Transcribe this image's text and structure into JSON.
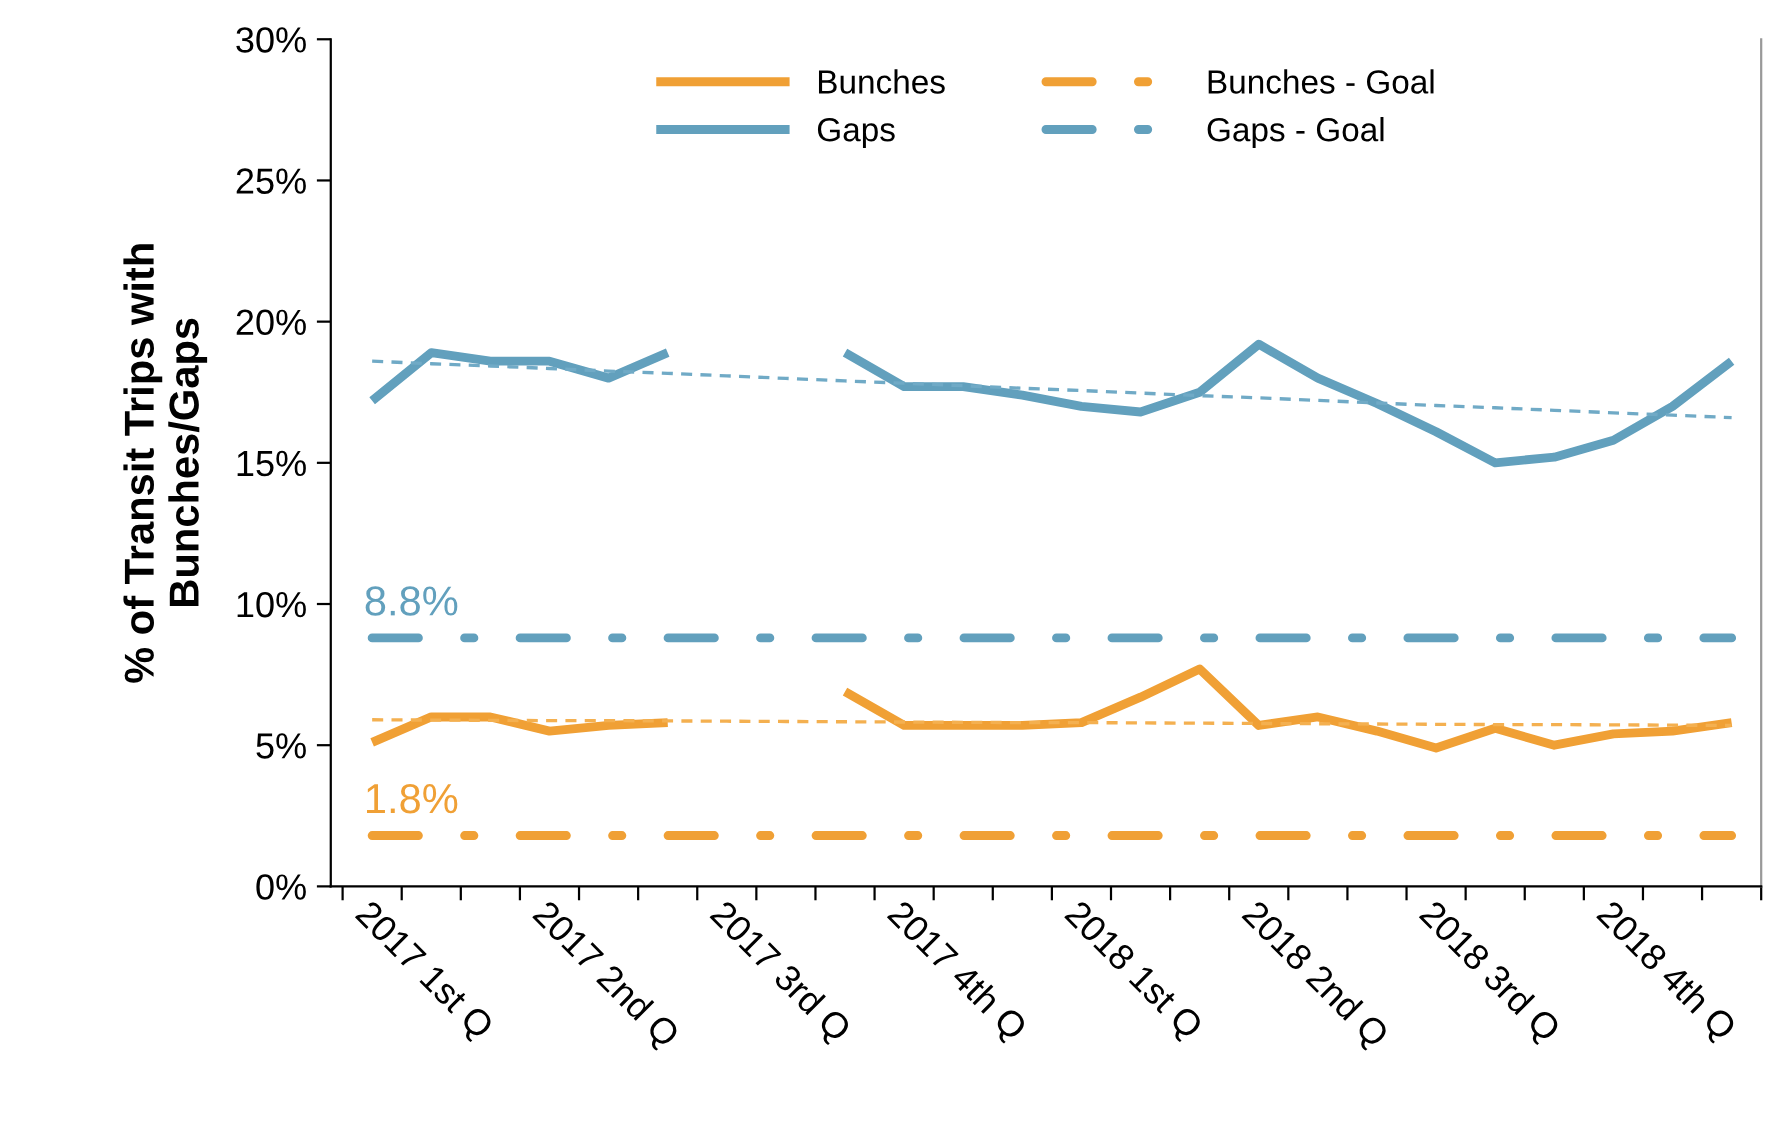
{
  "chart_data": {
    "type": "line",
    "ylabel": "% of Transit Trips with\nBunches/Gaps",
    "categories": [
      "2017 1st Q",
      null,
      null,
      "2017 2nd Q",
      null,
      null,
      "2017 3rd Q",
      null,
      null,
      "2017 4th Q",
      null,
      null,
      "2018 1st Q",
      null,
      null,
      "2018 2nd Q",
      null,
      null,
      "2018 3rd Q",
      null,
      null,
      "2018 4th Q",
      null,
      null
    ],
    "series": [
      {
        "name": "Bunches",
        "color": "#f0a035",
        "line_style": "solid",
        "values": [
          5.1,
          6.0,
          6.0,
          5.5,
          5.7,
          5.8,
          null,
          null,
          6.9,
          5.7,
          5.7,
          5.7,
          5.8,
          6.7,
          7.7,
          5.7,
          6.0,
          5.5,
          4.9,
          5.6,
          5.0,
          5.4,
          5.5,
          5.8
        ]
      },
      {
        "name": "Gaps",
        "color": "#62a0bd",
        "line_style": "solid",
        "values": [
          17.2,
          18.9,
          18.6,
          18.6,
          18.0,
          18.9,
          null,
          null,
          18.9,
          17.7,
          17.7,
          17.4,
          17.0,
          16.8,
          17.5,
          19.2,
          18.0,
          17.1,
          16.1,
          15.0,
          15.2,
          15.8,
          17.0,
          18.6
        ]
      },
      {
        "name": "Bunches - Goal",
        "color": "#f0a035",
        "line_style": "dashdot",
        "values": [
          1.8,
          1.8,
          1.8,
          1.8,
          1.8,
          1.8,
          1.8,
          1.8,
          1.8,
          1.8,
          1.8,
          1.8,
          1.8,
          1.8,
          1.8,
          1.8,
          1.8,
          1.8,
          1.8,
          1.8,
          1.8,
          1.8,
          1.8,
          1.8
        ],
        "value_labels": [
          "1.8%",
          null,
          null,
          null,
          null,
          null,
          null,
          null,
          null,
          null,
          null,
          null,
          null,
          null,
          null,
          null,
          null,
          null,
          null,
          null,
          null,
          null,
          null,
          null
        ]
      },
      {
        "name": "Gaps - Goal",
        "color": "#62a0bd",
        "line_style": "dashdot",
        "values": [
          8.8,
          8.8,
          8.8,
          8.8,
          8.8,
          8.8,
          8.8,
          8.8,
          8.8,
          8.8,
          8.8,
          8.8,
          8.8,
          8.8,
          8.8,
          8.8,
          8.8,
          8.8,
          8.8,
          8.8,
          8.8,
          8.8,
          8.8,
          8.8
        ],
        "value_labels": [
          "8.8%",
          null,
          null,
          null,
          null,
          null,
          null,
          null,
          null,
          null,
          null,
          null,
          null,
          null,
          null,
          null,
          null,
          null,
          null,
          null,
          null,
          null,
          null,
          null
        ]
      },
      {
        "color": "#f4b050",
        "line_style": "dashed",
        "values": [
          5.9,
          5.89,
          5.88,
          5.87,
          5.87,
          5.86,
          5.85,
          5.84,
          5.83,
          5.82,
          5.81,
          5.8,
          5.8,
          5.79,
          5.78,
          5.77,
          5.76,
          5.75,
          5.74,
          5.73,
          5.73,
          5.72,
          5.71,
          5.7
        ]
      },
      {
        "color": "#70aac6",
        "line_style": "dashed",
        "values": [
          18.6,
          18.51,
          18.43,
          18.34,
          18.25,
          18.17,
          18.08,
          17.99,
          17.9,
          17.82,
          17.73,
          17.64,
          17.56,
          17.47,
          17.38,
          17.3,
          17.21,
          17.12,
          17.03,
          16.95,
          16.86,
          16.77,
          16.69,
          16.6
        ]
      }
    ],
    "ylim": [
      0,
      30
    ],
    "yticks": [
      {
        "value": 0,
        "label": "0%"
      },
      {
        "value": 5,
        "label": "5%"
      },
      {
        "value": 10,
        "label": "10%"
      },
      {
        "value": 15,
        "label": "15%"
      },
      {
        "value": 20,
        "label": "20%"
      },
      {
        "value": 25,
        "label": "25%"
      },
      {
        "value": 30,
        "label": "30%"
      }
    ],
    "grid": false,
    "legend": "top",
    "marker": "none"
  }
}
